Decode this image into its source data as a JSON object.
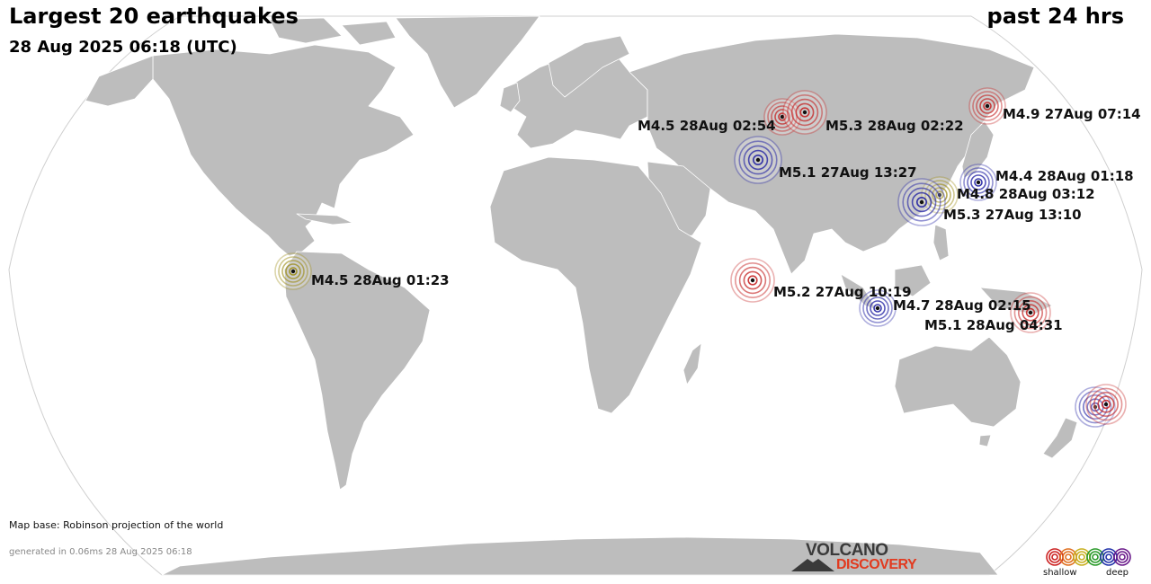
{
  "header": {
    "title": "Largest 20 earthquakes",
    "date": "28 Aug 2025 06:18 (UTC)",
    "period": "past 24 hrs"
  },
  "footer": {
    "map_base": "Map base: Robinson projection of the world",
    "generated": "generated in 0.06ms 28 Aug 2025 06:18"
  },
  "logo": {
    "line1": "VOLCANO",
    "line2": "DISCOVERY"
  },
  "legend": {
    "shallow_label": "shallow",
    "deep_label": "deep",
    "depth_colors": [
      "#cc2222",
      "#e07020",
      "#c8b020",
      "#2a9a2a",
      "#2233aa",
      "#6a1a8a"
    ]
  },
  "colors": {
    "land": "#bdbdbd",
    "ocean": "#ffffff",
    "shallow": "#c42020",
    "intermediate": "#9a8a10",
    "deep": "#1a1aa0"
  },
  "quakes": [
    {
      "label": "M4.9 27Aug 07:14",
      "depth": "shallow"
    },
    {
      "label": "M4.5 28Aug 02:54",
      "depth": "shallow"
    },
    {
      "label": "M5.3 28Aug 02:22",
      "depth": "shallow"
    },
    {
      "label": "M5.1 27Aug 13:27",
      "depth": "deep"
    },
    {
      "label": "M4.4 28Aug 01:18",
      "depth": "deep"
    },
    {
      "label": "M4.8 28Aug 03:12",
      "depth": "intermediate"
    },
    {
      "label": "M5.3 27Aug 13:10",
      "depth": "deep"
    },
    {
      "label": "M4.5 28Aug 01:23",
      "depth": "intermediate"
    },
    {
      "label": "M5.2 27Aug 10:19",
      "depth": "shallow"
    },
    {
      "label": "M4.7 28Aug 02:15",
      "depth": "deep"
    },
    {
      "label": "M5.1 28Aug 04:31",
      "depth": "shallow"
    },
    {
      "label": "",
      "depth": "deep"
    },
    {
      "label": "",
      "depth": "shallow"
    }
  ]
}
